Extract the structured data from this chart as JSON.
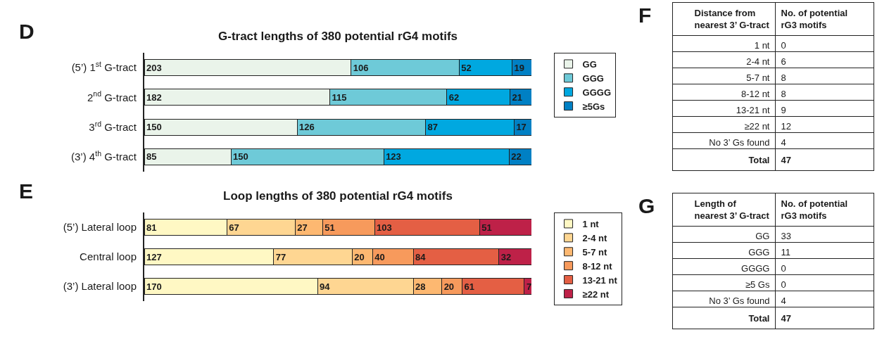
{
  "chart_data": [
    {
      "type": "bar",
      "orientation": "horizontal",
      "stacked": true,
      "title": "G-tract lengths of 380 potential rG4 motifs",
      "annotations": [
        "D"
      ],
      "categories": [
        "(5’) 1$^{st}$ G-tract",
        "2$^{nd}$ G-tract",
        "3$^{rd}$ G-tract",
        "(3’) 4$^{th}$ G-tract"
      ],
      "series": [
        {
          "name": "GG",
          "color": "#eaf4ea",
          "values": [
            203,
            182,
            150,
            85
          ]
        },
        {
          "name": "GGG",
          "color": "#6ecad8",
          "values": [
            106,
            115,
            126,
            150
          ]
        },
        {
          "name": "GGGG",
          "color": "#00a8e0",
          "values": [
            52,
            62,
            87,
            123
          ]
        },
        {
          "name": "≥5Gs",
          "color": "#0080c4",
          "values": [
            19,
            21,
            17,
            22
          ]
        }
      ],
      "xlim": [
        0,
        380
      ],
      "data_labels": true,
      "legend": "right"
    },
    {
      "type": "bar",
      "orientation": "horizontal",
      "stacked": true,
      "title": "Loop lengths of 380 potential rG4 motifs",
      "annotations": [
        "E"
      ],
      "categories": [
        "(5’) Lateral loop",
        "Central loop",
        "(3’) Lateral loop"
      ],
      "series": [
        {
          "name": "1 nt",
          "color": "#fff8c4",
          "values": [
            81,
            127,
            170
          ]
        },
        {
          "name": "2-4 nt",
          "color": "#fed692",
          "values": [
            67,
            77,
            94
          ]
        },
        {
          "name": "5-7 nt",
          "color": "#fdb871",
          "values": [
            27,
            20,
            28
          ]
        },
        {
          "name": "8-12 nt",
          "color": "#f79a5c",
          "values": [
            51,
            40,
            20
          ]
        },
        {
          "name": "13-21 nt",
          "color": "#e45f44",
          "values": [
            103,
            84,
            61
          ]
        },
        {
          "name": "≥22 nt",
          "color": "#be2148",
          "values": [
            51,
            32,
            7
          ]
        }
      ],
      "xlim": [
        0,
        380
      ],
      "data_labels": true,
      "legend": "right"
    },
    {
      "type": "other",
      "annotations": [
        "F"
      ],
      "xlabel": "Distance from\nnearest 3’ G-tract",
      "ylabel": "No. of potential\nrG3 motifs",
      "categories": [
        "1 nt",
        "2-4 nt",
        "5-7 nt",
        "8-12 nt",
        "13-21 nt",
        "≥22 nt",
        "No 3’ Gs found",
        "Total"
      ],
      "values": [
        0,
        6,
        8,
        8,
        9,
        12,
        4,
        47
      ],
      "data_labels": true
    },
    {
      "type": "other",
      "annotations": [
        "G"
      ],
      "xlabel": "Length of\nnearest 3’ G-tract",
      "ylabel": "No. of potential\nrG3 motifs",
      "categories": [
        "GG",
        "GGG",
        "GGGG",
        "≥5 Gs",
        "No 3’ Gs found",
        "Total"
      ],
      "values": [
        33,
        11,
        0,
        0,
        4,
        47
      ],
      "data_labels": true
    }
  ]
}
